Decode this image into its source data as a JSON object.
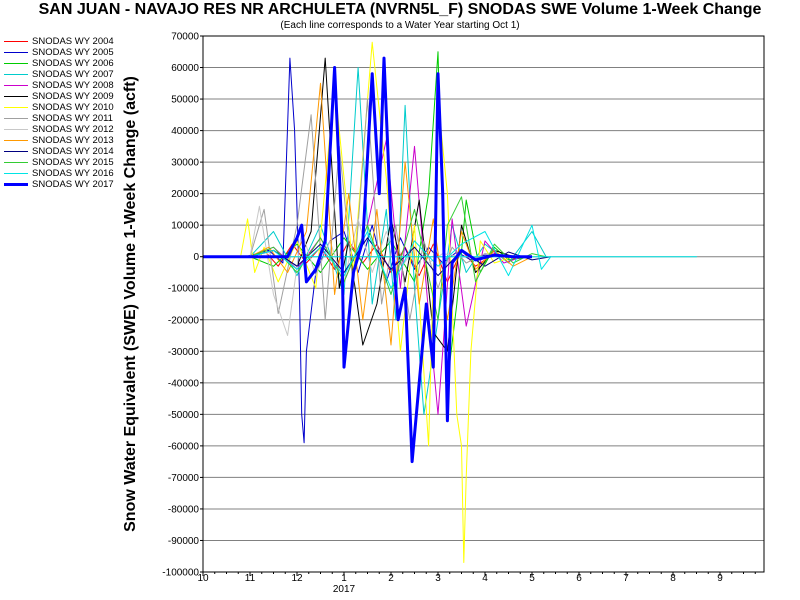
{
  "chart_data": {
    "type": "line",
    "title": "SAN JUAN - NAVAJO RES NR ARCHULETA (NVRN5L_F) SNODAS SWE Volume 1-Week Change",
    "subtitle": "(Each line corresponds to a Water Year starting Oct 1)",
    "ylabel": "Snow Water Equivalent (SWE) Volume 1-Week Change (acft)",
    "xlabel": "",
    "ylim": [
      -100000,
      70000
    ],
    "yticks": [
      70000,
      60000,
      50000,
      40000,
      30000,
      20000,
      10000,
      0,
      -10000,
      -20000,
      -30000,
      -40000,
      -50000,
      -60000,
      -70000,
      -80000,
      -90000,
      -100000
    ],
    "xlim": [
      10,
      11
    ],
    "xticks": [
      10,
      11,
      12,
      1,
      2,
      3,
      4,
      5,
      6,
      7,
      8,
      9
    ],
    "x_year_label": "2017",
    "x_year_label_at": 1,
    "x_units": "month (Oct = 10, ... Sep = 9)",
    "grid": true,
    "legend_position": "left",
    "series": [
      {
        "name": "SNODAS WY 2004",
        "color": "#ff0000",
        "width": 1,
        "x": [
          10,
          11.0,
          11.3,
          11.6,
          11.9,
          12.2,
          12.5,
          12.8,
          1.1,
          1.4,
          1.7,
          2.0,
          2.3,
          2.6,
          2.9,
          3.2,
          3.5,
          3.8,
          4.2,
          4.6,
          5.0
        ],
        "y": [
          0,
          0,
          2000,
          -3000,
          4000,
          -2000,
          3000,
          -4000,
          5000,
          -2000,
          4000,
          -5000,
          3000,
          -6000,
          4000,
          -8000,
          2000,
          -3000,
          1000,
          -500,
          0
        ]
      },
      {
        "name": "SNODAS WY 2005",
        "color": "#0000cc",
        "width": 1,
        "x": [
          10,
          10.9,
          11.4,
          11.7,
          11.85,
          11.95,
          12.05,
          12.1,
          12.15,
          12.2,
          12.4,
          12.7,
          1.0,
          1.3,
          1.6,
          1.9,
          2.2,
          2.5,
          2.8,
          3.1,
          3.4,
          3.7,
          4.0,
          4.3,
          4.6
        ],
        "y": [
          0,
          0,
          2000,
          -2000,
          63000,
          40000,
          -10000,
          -50000,
          -59000,
          -30000,
          -5000,
          5000,
          8000,
          -5000,
          10000,
          -8000,
          6000,
          -4000,
          3000,
          -2000,
          1500,
          -1000,
          500,
          0,
          0
        ]
      },
      {
        "name": "SNODAS WY 2006",
        "color": "#00cc00",
        "width": 1,
        "x": [
          10,
          11.0,
          11.5,
          12.0,
          12.5,
          1.0,
          1.5,
          2.0,
          2.5,
          2.8,
          3.0,
          3.1,
          3.2,
          3.4,
          3.6,
          3.9,
          4.2,
          4.5,
          5.0
        ],
        "y": [
          0,
          0,
          -3000,
          4000,
          -5000,
          6000,
          -4000,
          5000,
          -8000,
          20000,
          65000,
          10000,
          -40000,
          -15000,
          18000,
          -5000,
          3000,
          -1000,
          0
        ]
      },
      {
        "name": "SNODAS WY 2007",
        "color": "#00cccc",
        "width": 1,
        "x": [
          10,
          11.0,
          11.5,
          12.0,
          12.5,
          1.0,
          1.3,
          1.6,
          1.9,
          2.1,
          2.3,
          2.5,
          2.7,
          3.0,
          3.3,
          3.6,
          4.0,
          4.5,
          5.0,
          5.3
        ],
        "y": [
          0,
          0,
          8000,
          -6000,
          10000,
          -12000,
          60000,
          -15000,
          15000,
          -20000,
          48000,
          -10000,
          -50000,
          -20000,
          10000,
          -5000,
          4000,
          -2000,
          8000,
          0
        ]
      },
      {
        "name": "SNODAS WY 2008",
        "color": "#cc00cc",
        "width": 1,
        "x": [
          10,
          11.0,
          11.5,
          12.0,
          12.5,
          1.0,
          1.5,
          1.9,
          2.2,
          2.5,
          2.8,
          3.0,
          3.1,
          3.3,
          3.6,
          4.0,
          4.4,
          4.8
        ],
        "y": [
          0,
          0,
          3000,
          -4000,
          6000,
          -8000,
          10000,
          37000,
          -10000,
          35000,
          -18000,
          -50000,
          -30000,
          12000,
          -22000,
          5000,
          -2000,
          0
        ]
      },
      {
        "name": "SNODAS WY 2009",
        "color": "#000000",
        "width": 1,
        "x": [
          10,
          11.0,
          11.5,
          12.0,
          12.3,
          12.6,
          12.9,
          1.1,
          1.4,
          1.7,
          2.0,
          2.3,
          2.6,
          2.9,
          3.2,
          3.5,
          3.8,
          4.2,
          4.6,
          5.0
        ],
        "y": [
          0,
          0,
          2000,
          -3000,
          8000,
          63000,
          -10000,
          5000,
          -28000,
          -15000,
          12000,
          -8000,
          18000,
          -24000,
          -30000,
          10000,
          -5000,
          2000,
          0,
          0
        ]
      },
      {
        "name": "SNODAS WY 2010",
        "color": "#ffff00",
        "width": 1,
        "x": [
          10,
          10.8,
          10.95,
          11.1,
          11.3,
          11.6,
          12.0,
          12.4,
          12.8,
          1.2,
          1.6,
          1.9,
          2.2,
          2.5,
          2.8,
          3.0,
          3.2,
          3.4,
          3.5,
          3.55,
          3.6,
          3.7,
          3.9,
          4.2,
          4.6
        ],
        "y": [
          0,
          0,
          12000,
          -5000,
          3000,
          -8000,
          5000,
          -10000,
          55000,
          -5000,
          68000,
          25000,
          -30000,
          10000,
          -60000,
          50000,
          20000,
          -50000,
          -60000,
          -97000,
          -70000,
          -30000,
          5000,
          -2000,
          0
        ]
      },
      {
        "name": "SNODAS WY 2011",
        "color": "#a0a0a0",
        "width": 1,
        "x": [
          10,
          11.0,
          11.3,
          11.6,
          12.0,
          12.3,
          12.6,
          12.9,
          1.2,
          1.5,
          1.8,
          2.1,
          2.4,
          2.7,
          3.0,
          3.3,
          3.6,
          4.0,
          4.4
        ],
        "y": [
          0,
          0,
          15000,
          -18000,
          10000,
          45000,
          -20000,
          35000,
          -10000,
          50000,
          -15000,
          10000,
          -20000,
          5000,
          -10000,
          3000,
          -2000,
          1000,
          0
        ]
      },
      {
        "name": "SNODAS WY 2012",
        "color": "#c8c8c8",
        "width": 1,
        "x": [
          10,
          11.0,
          11.2,
          11.5,
          11.8,
          12.1,
          12.4,
          12.7,
          1.0,
          1.3,
          1.6,
          1.9,
          2.2,
          2.5,
          2.8,
          3.1,
          3.5,
          4.0
        ],
        "y": [
          0,
          0,
          16000,
          -12000,
          -25000,
          8000,
          -6000,
          5000,
          -8000,
          12000,
          -5000,
          8000,
          -4000,
          3000,
          -2000,
          1000,
          0,
          0
        ]
      },
      {
        "name": "SNODAS WY 2013",
        "color": "#ff9900",
        "width": 1,
        "x": [
          10,
          11.0,
          11.4,
          11.8,
          12.2,
          12.5,
          12.8,
          1.1,
          1.4,
          1.7,
          2.0,
          2.3,
          2.6,
          2.9,
          3.2,
          3.5,
          3.8,
          4.2,
          4.6,
          5.0
        ],
        "y": [
          0,
          0,
          3000,
          -5000,
          8000,
          55000,
          -12000,
          20000,
          -20000,
          15000,
          -28000,
          30000,
          -15000,
          12000,
          -20000,
          8000,
          -4000,
          2000,
          -3000,
          0
        ]
      },
      {
        "name": "SNODAS WY 2014",
        "color": "#000080",
        "width": 1,
        "x": [
          10,
          11.0,
          11.5,
          12.0,
          12.5,
          1.0,
          1.5,
          2.0,
          2.5,
          3.0,
          3.5,
          4.0,
          4.5,
          5.0,
          5.4
        ],
        "y": [
          0,
          0,
          2000,
          -3000,
          4000,
          -5000,
          6000,
          -4000,
          3000,
          -6000,
          2000,
          -3000,
          1500,
          -1000,
          0
        ]
      },
      {
        "name": "SNODAS WY 2015",
        "color": "#33cc33",
        "width": 1,
        "x": [
          10,
          11.0,
          11.5,
          12.0,
          12.5,
          1.0,
          1.5,
          2.0,
          2.5,
          3.0,
          3.2,
          3.5,
          3.8,
          4.2,
          4.6,
          5.0,
          5.3
        ],
        "y": [
          0,
          0,
          3000,
          -5000,
          6000,
          -8000,
          10000,
          -12000,
          15000,
          -20000,
          10000,
          19000,
          -8000,
          4000,
          -2000,
          1000,
          0
        ]
      },
      {
        "name": "SNODAS WY 2016",
        "color": "#00e5e5",
        "width": 1,
        "x": [
          10,
          11.0,
          11.5,
          12.0,
          12.5,
          1.0,
          1.5,
          2.0,
          2.5,
          3.0,
          3.5,
          4.0,
          4.5,
          5.0,
          5.2,
          5.4,
          5.8,
          6.5,
          7.5,
          8.5,
          10.0
        ],
        "y": [
          0,
          0,
          2000,
          -4000,
          3000,
          -6000,
          8000,
          -10000,
          5000,
          -3000,
          4000,
          8000,
          -6000,
          10000,
          -4000,
          0,
          0,
          0,
          0,
          0,
          0
        ]
      },
      {
        "name": "SNODAS WY 2017",
        "color": "#0000ff",
        "width": 3,
        "x": [
          10,
          11.8,
          12.0,
          12.1,
          12.2,
          12.4,
          12.6,
          12.8,
          12.95,
          1.0,
          1.2,
          1.4,
          1.6,
          1.75,
          1.85,
          2.0,
          2.15,
          2.3,
          2.45,
          2.6,
          2.75,
          2.9,
          3.0,
          3.1,
          3.2,
          3.3,
          3.5,
          3.8,
          4.2,
          4.6,
          5.0
        ],
        "y": [
          0,
          0,
          6000,
          10000,
          -8000,
          -4000,
          5000,
          60000,
          10000,
          -35000,
          -5000,
          5000,
          58000,
          20000,
          63000,
          10000,
          -20000,
          -10000,
          -65000,
          -40000,
          -15000,
          -35000,
          58000,
          20000,
          -52000,
          -2000,
          2000,
          -1000,
          500,
          0,
          0
        ]
      }
    ]
  }
}
